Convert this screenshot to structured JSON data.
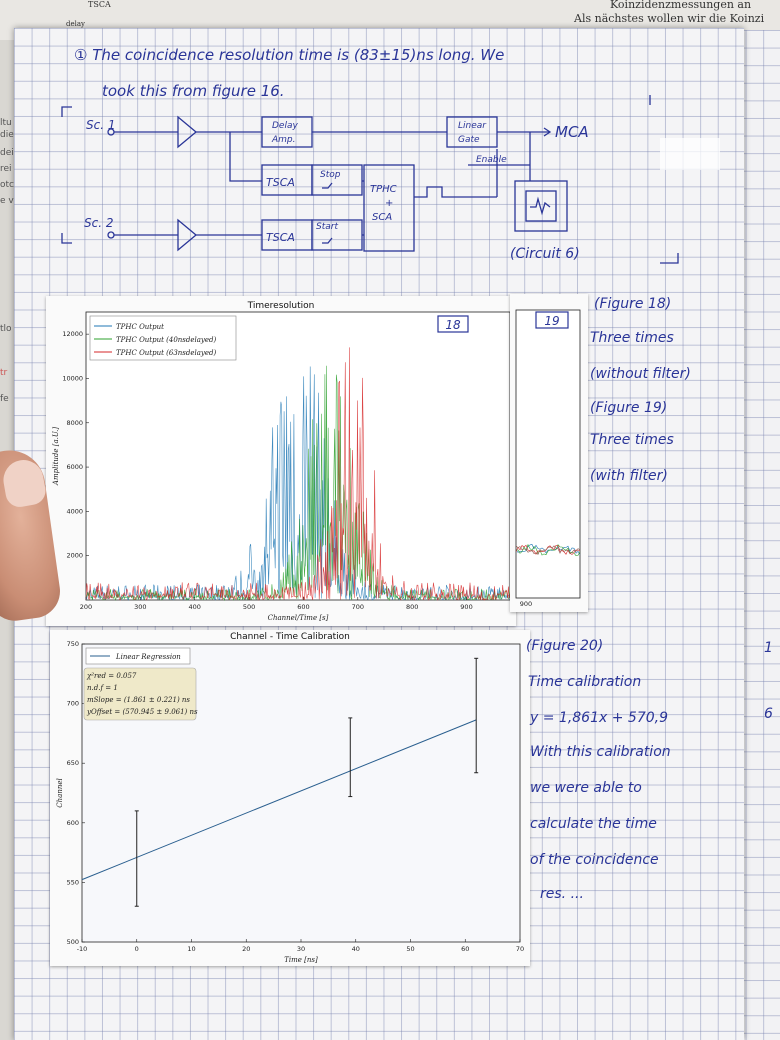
{
  "background": {
    "top_doc_lines": [
      "Koinzidenzmessungen an",
      "Als nächstes wollen wir die Koinzi"
    ],
    "top_doc_labels": [
      "delay",
      "TSCA"
    ],
    "left_doc_lines": [
      "ltu",
      "die",
      "deil",
      "rei",
      "otc",
      "e v",
      "tlo",
      "tr",
      "fe"
    ]
  },
  "notes": {
    "intro_line1": "① The coincidence resolution time is (83±15)ns long. We",
    "intro_line2": "took this from figure 16.",
    "circuit_label": "(Circuit 6)",
    "fig18_lines": [
      "(Figure 18)",
      "Three times",
      "(without filter)"
    ],
    "fig19_lines": [
      "(Figure 19)",
      "Three times",
      "(with filter)"
    ],
    "fig20_lines": [
      "(Figure 20)",
      "Time calibration",
      "y = 1,861x + 570,9",
      "With this calibration",
      "we were able to",
      "calculate the time",
      "of the coincidence",
      "res. ..."
    ],
    "margin_marks": [
      "1",
      "6"
    ]
  },
  "circuit": {
    "source1": "Sc. 1",
    "source2": "Sc. 2",
    "delay_amp": [
      "Delay",
      "Amp."
    ],
    "linear_gate": [
      "Linear",
      "Gate"
    ],
    "mca": "MCA",
    "tsca_top": "TSCA",
    "tsca_bottom": "TSCA",
    "stop": "Stop",
    "start": "Start",
    "tphc": [
      "TPHC",
      "+",
      "SCA"
    ],
    "enable": "Enable"
  },
  "chart_data": [
    {
      "type": "line",
      "title": "Timeresolution",
      "figure_label": "18",
      "xlabel": "Channel/Time [s]",
      "ylabel": "Amplitude [a.U.]",
      "xlim": [
        200,
        980
      ],
      "ylim": [
        0,
        13000
      ],
      "xticks": [
        200,
        300,
        400,
        500,
        600,
        700,
        800,
        900
      ],
      "yticks": [
        2000,
        4000,
        6000,
        8000,
        10000,
        12000
      ],
      "legend_position": "top-left",
      "grid": false,
      "series": [
        {
          "name": "TPHC Output",
          "color": "#1f77b4",
          "peak_center": 590,
          "peak_width": 45,
          "peak_height": 12500,
          "baseline": 700
        },
        {
          "name": "TPHC Output (40nsdelayed)",
          "color": "#2ca02c",
          "peak_center": 650,
          "peak_width": 40,
          "peak_height": 11000,
          "baseline": 500
        },
        {
          "name": "TPHC Output (63nsdelayed)",
          "color": "#d62728",
          "peak_center": 690,
          "peak_width": 30,
          "peak_height": 13000,
          "baseline": 800
        }
      ]
    },
    {
      "type": "line",
      "figure_label": "19",
      "xticks": [
        900
      ]
    },
    {
      "type": "line",
      "title": "Channel - Time Calibration",
      "xlabel": "Time [ns]",
      "ylabel": "Channel",
      "xlim": [
        -10,
        70
      ],
      "ylim": [
        500,
        750
      ],
      "xticks": [
        -10,
        0,
        10,
        20,
        30,
        40,
        50,
        60,
        70
      ],
      "yticks": [
        500,
        550,
        600,
        650,
        700,
        750
      ],
      "legend_position": "top-left",
      "grid": false,
      "series": [
        {
          "name": "Linear Regression",
          "color": "#2a5f8f",
          "slope": 1.861,
          "intercept": 570.945
        }
      ],
      "points": [
        {
          "x": 0,
          "y": 570,
          "err": 40
        },
        {
          "x": 39,
          "y": 655,
          "err": 33
        },
        {
          "x": 62,
          "y": 690,
          "err": 48
        }
      ],
      "fit_box": [
        "χ²red = 0.057",
        "n.d.f = 1",
        "mSlope = (1.861 ± 0.221) ns",
        "yOffset = (570.945 ± 9.061) ns"
      ]
    }
  ]
}
